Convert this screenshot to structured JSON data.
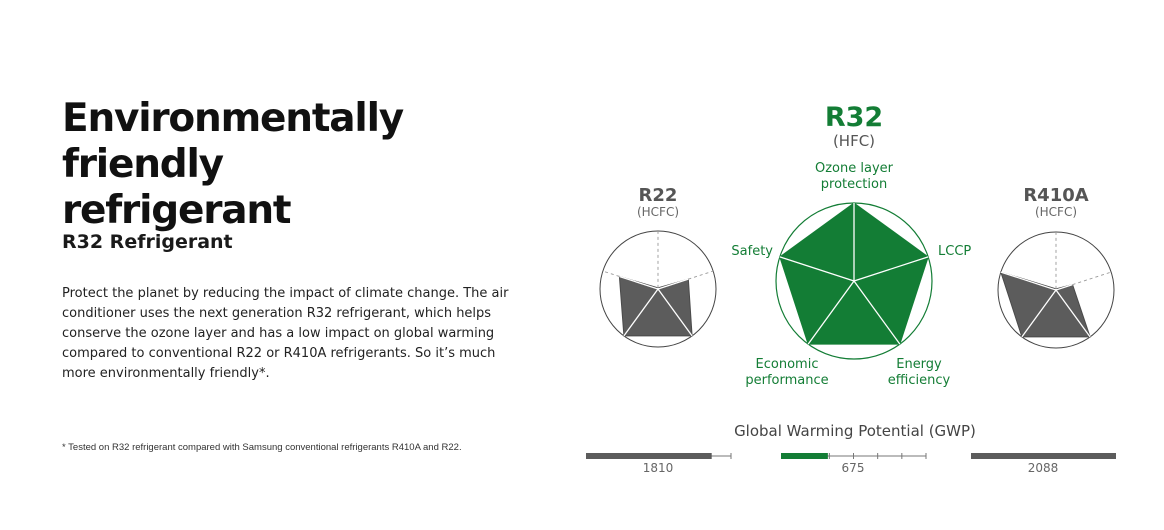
{
  "headline": {
    "line1": "Environmentally friendly",
    "line2": "refrigerant"
  },
  "subheading": "R32 Refrigerant",
  "description": "Protect the planet by reducing the impact of climate change. The air conditioner uses the next generation R32 refrigerant, which helps conserve the ozone layer and has a low impact on global warming compared to conventional R22 or R410A refrigerants. So it’s much more environmentally friendly*.",
  "footnote": "* Tested on R32 refrigerant compared with Samsung conventional refrigerants R410A and R22.",
  "colors": {
    "green": "#137d35",
    "grey": "#5c5c5c",
    "light_grey": "#999999"
  },
  "chart_data": {
    "type": "radar",
    "axes": [
      {
        "lines": [
          "Ozone layer",
          "protection"
        ]
      },
      {
        "lines": [
          "LCCP"
        ]
      },
      {
        "lines": [
          "Energy",
          "efficiency"
        ]
      },
      {
        "lines": [
          "Economic",
          "performance"
        ]
      },
      {
        "lines": [
          "Safety"
        ]
      }
    ],
    "series": [
      {
        "name": "R22",
        "type_label": "(HCFC)",
        "values": [
          0.0,
          0.55,
          1.0,
          1.0,
          0.7
        ],
        "highlight": false
      },
      {
        "name": "R32",
        "type_label": "(HFC)",
        "values": [
          1.0,
          1.0,
          1.0,
          1.0,
          1.0
        ],
        "highlight": true
      },
      {
        "name": "R410A",
        "type_label": "(HCFC)",
        "values": [
          0.0,
          0.3,
          1.0,
          1.0,
          1.0
        ],
        "highlight": false
      }
    ],
    "gwp": {
      "title": "Global Warming Potential (GWP)",
      "bars": [
        {
          "name": "R22",
          "value": 1810,
          "label": "1810"
        },
        {
          "name": "R32",
          "value": 675,
          "label": "675"
        },
        {
          "name": "R410A",
          "value": 2088,
          "label": "2088"
        }
      ],
      "max": 2088
    }
  }
}
